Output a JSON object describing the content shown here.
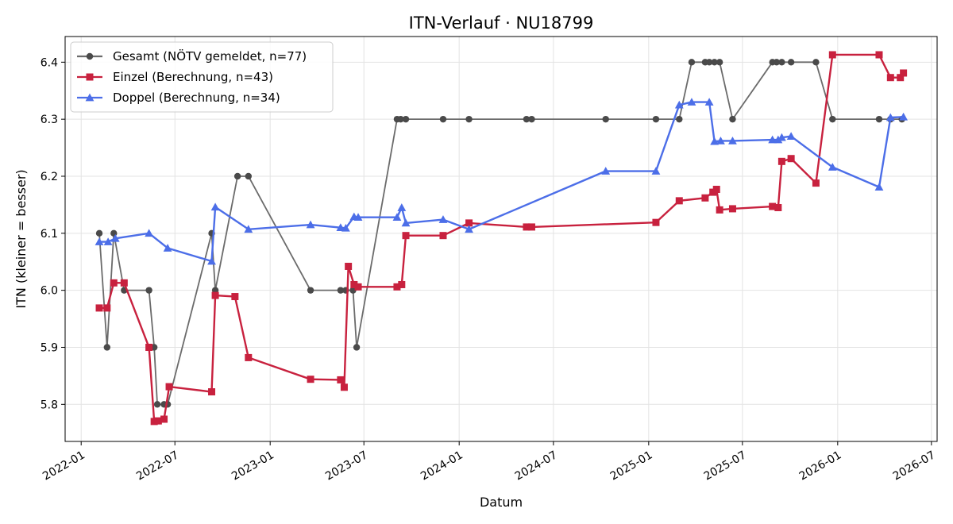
{
  "chart_data": {
    "type": "line",
    "title": "ITN-Verlauf · NU18799",
    "xlabel": "Datum",
    "ylabel": "ITN  (kleiner = besser)",
    "x_ticks": [
      "2022-01",
      "2022-07",
      "2023-01",
      "2023-07",
      "2024-01",
      "2024-07",
      "2025-01",
      "2025-07",
      "2026-01",
      "2026-07"
    ],
    "y_ticks": [
      "5.8",
      "5.9",
      "6.0",
      "6.1",
      "6.2",
      "6.3",
      "6.4"
    ],
    "xlim": [
      "2021-12-01",
      "2026-07-12"
    ],
    "ylim": [
      5.735,
      6.445
    ],
    "grid": true,
    "legend_position": "top-left",
    "series": [
      {
        "name": "Gesamt (NÖTV gemeldet, n=77)",
        "color": "#6b6b6b",
        "marker": "circle",
        "points": [
          [
            "2022-02-05",
            6.1
          ],
          [
            "2022-02-20",
            5.9
          ],
          [
            "2022-03-05",
            6.1
          ],
          [
            "2022-03-25",
            6.0
          ],
          [
            "2022-05-12",
            6.0
          ],
          [
            "2022-05-22",
            5.9
          ],
          [
            "2022-05-28",
            5.8
          ],
          [
            "2022-06-10",
            5.8
          ],
          [
            "2022-06-17",
            5.8
          ],
          [
            "2022-09-10",
            6.1
          ],
          [
            "2022-09-17",
            6.0
          ],
          [
            "2022-10-30",
            6.2
          ],
          [
            "2022-11-20",
            6.2
          ],
          [
            "2023-03-20",
            6.0
          ],
          [
            "2023-05-17",
            6.0
          ],
          [
            "2023-05-27",
            6.0
          ],
          [
            "2023-06-10",
            6.0
          ],
          [
            "2023-06-17",
            5.9
          ],
          [
            "2023-09-03",
            6.3
          ],
          [
            "2023-09-10",
            6.3
          ],
          [
            "2023-09-20",
            6.3
          ],
          [
            "2023-12-01",
            6.3
          ],
          [
            "2024-01-20",
            6.3
          ],
          [
            "2024-05-10",
            6.3
          ],
          [
            "2024-05-20",
            6.3
          ],
          [
            "2024-10-10",
            6.3
          ],
          [
            "2025-01-15",
            6.3
          ],
          [
            "2025-03-01",
            6.3
          ],
          [
            "2025-03-25",
            6.4
          ],
          [
            "2025-04-20",
            6.4
          ],
          [
            "2025-04-28",
            6.4
          ],
          [
            "2025-05-08",
            6.4
          ],
          [
            "2025-05-18",
            6.4
          ],
          [
            "2025-06-12",
            6.3
          ],
          [
            "2025-08-28",
            6.4
          ],
          [
            "2025-09-05",
            6.4
          ],
          [
            "2025-09-15",
            6.4
          ],
          [
            "2025-10-03",
            6.4
          ],
          [
            "2025-11-20",
            6.4
          ],
          [
            "2025-12-22",
            6.3
          ],
          [
            "2026-03-22",
            6.3
          ],
          [
            "2026-04-13",
            6.3
          ],
          [
            "2026-05-05",
            6.3
          ]
        ]
      },
      {
        "name": "Einzel (Berechnung, n=43)",
        "color": "#c8213e",
        "marker": "square",
        "points": [
          [
            "2022-02-05",
            5.969
          ],
          [
            "2022-02-20",
            5.969
          ],
          [
            "2022-03-05",
            6.013
          ],
          [
            "2022-03-25",
            6.013
          ],
          [
            "2022-05-12",
            5.9
          ],
          [
            "2022-05-22",
            5.77
          ],
          [
            "2022-05-30",
            5.771
          ],
          [
            "2022-06-10",
            5.774
          ],
          [
            "2022-06-20",
            5.831
          ],
          [
            "2022-09-10",
            5.822
          ],
          [
            "2022-09-17",
            5.991
          ],
          [
            "2022-10-25",
            5.989
          ],
          [
            "2022-11-20",
            5.882
          ],
          [
            "2023-03-20",
            5.844
          ],
          [
            "2023-05-17",
            5.843
          ],
          [
            "2023-05-24",
            5.83
          ],
          [
            "2023-06-01",
            6.042
          ],
          [
            "2023-06-12",
            6.01
          ],
          [
            "2023-06-20",
            6.006
          ],
          [
            "2023-09-03",
            6.006
          ],
          [
            "2023-09-12",
            6.01
          ],
          [
            "2023-09-20",
            6.096
          ],
          [
            "2023-12-01",
            6.096
          ],
          [
            "2024-01-20",
            6.118
          ],
          [
            "2024-05-10",
            6.111
          ],
          [
            "2024-05-20",
            6.111
          ],
          [
            "2025-01-15",
            6.119
          ],
          [
            "2025-03-01",
            6.157
          ],
          [
            "2025-04-20",
            6.162
          ],
          [
            "2025-05-05",
            6.172
          ],
          [
            "2025-05-12",
            6.177
          ],
          [
            "2025-05-18",
            6.141
          ],
          [
            "2025-06-12",
            6.143
          ],
          [
            "2025-08-28",
            6.147
          ],
          [
            "2025-09-08",
            6.145
          ],
          [
            "2025-09-15",
            6.226
          ],
          [
            "2025-10-03",
            6.231
          ],
          [
            "2025-11-20",
            6.188
          ],
          [
            "2025-12-22",
            6.413
          ],
          [
            "2026-03-22",
            6.413
          ],
          [
            "2026-04-13",
            6.373
          ],
          [
            "2026-05-02",
            6.373
          ],
          [
            "2026-05-08",
            6.381
          ]
        ]
      },
      {
        "name": "Doppel (Berechnung, n=34)",
        "color": "#4c6ee8",
        "marker": "triangle",
        "points": [
          [
            "2022-02-05",
            6.085
          ],
          [
            "2022-02-22",
            6.085
          ],
          [
            "2022-03-08",
            6.091
          ],
          [
            "2022-05-12",
            6.1
          ],
          [
            "2022-06-17",
            6.074
          ],
          [
            "2022-09-10",
            6.051
          ],
          [
            "2022-09-17",
            6.146
          ],
          [
            "2022-11-20",
            6.107
          ],
          [
            "2023-03-20",
            6.115
          ],
          [
            "2023-05-17",
            6.11
          ],
          [
            "2023-05-27",
            6.109
          ],
          [
            "2023-06-12",
            6.129
          ],
          [
            "2023-06-20",
            6.128
          ],
          [
            "2023-09-03",
            6.128
          ],
          [
            "2023-09-12",
            6.145
          ],
          [
            "2023-09-20",
            6.118
          ],
          [
            "2023-12-01",
            6.124
          ],
          [
            "2024-01-20",
            6.107
          ],
          [
            "2024-10-10",
            6.209
          ],
          [
            "2025-01-15",
            6.209
          ],
          [
            "2025-03-01",
            6.325
          ],
          [
            "2025-03-25",
            6.33
          ],
          [
            "2025-04-28",
            6.33
          ],
          [
            "2025-05-08",
            6.261
          ],
          [
            "2025-05-20",
            6.262
          ],
          [
            "2025-06-12",
            6.262
          ],
          [
            "2025-08-28",
            6.264
          ],
          [
            "2025-09-08",
            6.264
          ],
          [
            "2025-09-15",
            6.268
          ],
          [
            "2025-10-03",
            6.27
          ],
          [
            "2025-12-22",
            6.216
          ],
          [
            "2026-03-22",
            6.181
          ],
          [
            "2026-04-13",
            6.303
          ],
          [
            "2026-05-08",
            6.304
          ]
        ]
      }
    ]
  }
}
